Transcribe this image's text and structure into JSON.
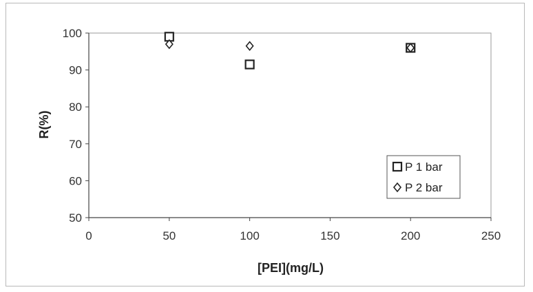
{
  "chart_data": {
    "type": "scatter",
    "xlabel": "[PEI](mg/L)",
    "ylabel": "R(%)",
    "xlim": [
      0,
      250
    ],
    "ylim": [
      50,
      100
    ],
    "xticks": [
      "0",
      "50",
      "100",
      "150",
      "200",
      "250"
    ],
    "yticks": [
      "50",
      "60",
      "70",
      "80",
      "90",
      "100"
    ],
    "grid": false,
    "legend_position": "bottom-right",
    "series": [
      {
        "name": "P 1 bar",
        "marker": "square",
        "color": "#222222",
        "points": [
          {
            "x": 50,
            "y": 99
          },
          {
            "x": 100,
            "y": 91.5
          },
          {
            "x": 200,
            "y": 96
          }
        ]
      },
      {
        "name": "P 2 bar",
        "marker": "diamond",
        "color": "#222222",
        "points": [
          {
            "x": 50,
            "y": 97
          },
          {
            "x": 100,
            "y": 96.5
          },
          {
            "x": 200,
            "y": 96
          }
        ]
      }
    ]
  }
}
